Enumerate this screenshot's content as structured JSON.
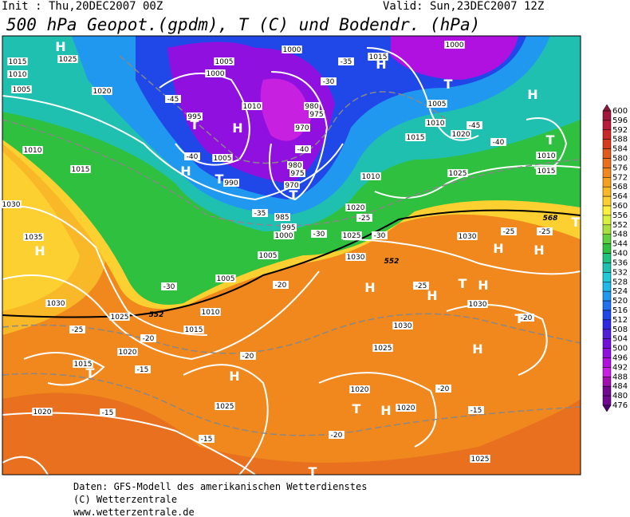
{
  "header": {
    "init": "Init : Thu,20DEC2007 00Z",
    "valid": "Valid: Sun,23DEC2007 12Z",
    "title": "500 hPa Geopot.(gpdm), T (C) und Bodendr. (hPa)"
  },
  "map": {
    "isobar_labels": [
      1015,
      1025,
      1010,
      1005,
      1020,
      1010,
      1015,
      1030,
      1035,
      1030,
      1025,
      1020,
      1015,
      1020,
      1005,
      1000,
      1010,
      995,
      1005,
      990,
      1000,
      980,
      975,
      970,
      980,
      975,
      970,
      985,
      995,
      1000,
      1005,
      1005,
      1010,
      1015,
      1010,
      1015,
      1010,
      1005,
      1020,
      1025,
      1020,
      1025,
      1030,
      1030,
      1030,
      1030,
      1025,
      1020,
      1020,
      1025,
      1025,
      1015,
      1000,
      1010,
      1015
    ],
    "temperature_labels": [
      -45,
      -40,
      -40,
      -35,
      -30,
      -35,
      -25,
      -30,
      -25,
      -25,
      -25,
      -30,
      -20,
      -25,
      -20,
      -15,
      -20,
      -15,
      -15,
      -20,
      -20,
      -15,
      -20,
      -45,
      -40,
      -30
    ],
    "pressure_centers": [
      "H",
      "H",
      "T",
      "H",
      "T",
      "T",
      "H",
      "H",
      "T",
      "T",
      "H",
      "T",
      "H",
      "H",
      "H",
      "T",
      "H",
      "T",
      "H",
      "T",
      "H",
      "H",
      "H",
      "T",
      "T"
    ],
    "geopotential_labels": [
      552,
      552,
      568
    ]
  },
  "colorbar": {
    "labels": [
      600,
      596,
      592,
      588,
      584,
      580,
      576,
      572,
      568,
      564,
      560,
      556,
      552,
      548,
      544,
      540,
      536,
      532,
      528,
      524,
      520,
      516,
      512,
      508,
      504,
      500,
      496,
      492,
      488,
      484,
      480,
      476
    ],
    "colors": [
      "#8b1a3a",
      "#a0163c",
      "#b81c3a",
      "#c8282a",
      "#d43a1e",
      "#e05a1e",
      "#e8701e",
      "#f0881e",
      "#f5a020",
      "#f8b828",
      "#fcd030",
      "#fff040",
      "#d8f040",
      "#a8e040",
      "#60d040",
      "#30c040",
      "#20c080",
      "#20c0b0",
      "#20c8d8",
      "#20b8e8",
      "#2098f0",
      "#2070f0",
      "#2048e8",
      "#3028e0",
      "#5020d8",
      "#7010d8",
      "#9010e0",
      "#b010e0",
      "#c820e0",
      "#a010b0",
      "#700890",
      "#500070"
    ]
  },
  "footer": {
    "lines": [
      "Daten: GFS-Modell des amerikanischen Wetterdienstes",
      "(C) Wetterzentrale",
      "www.wetterzentrale.de"
    ]
  }
}
